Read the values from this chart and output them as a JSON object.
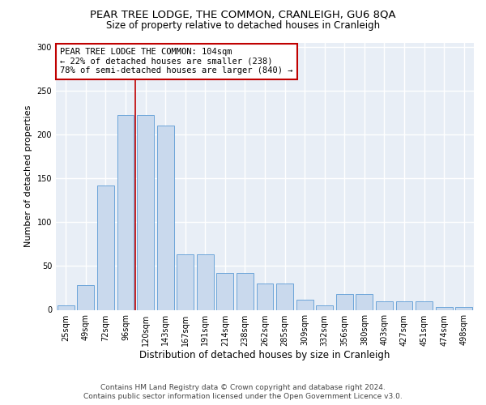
{
  "title": "PEAR TREE LODGE, THE COMMON, CRANLEIGH, GU6 8QA",
  "subtitle": "Size of property relative to detached houses in Cranleigh",
  "xlabel": "Distribution of detached houses by size in Cranleigh",
  "ylabel": "Number of detached properties",
  "categories": [
    "25sqm",
    "49sqm",
    "72sqm",
    "96sqm",
    "120sqm",
    "143sqm",
    "167sqm",
    "191sqm",
    "214sqm",
    "238sqm",
    "262sqm",
    "285sqm",
    "309sqm",
    "332sqm",
    "356sqm",
    "380sqm",
    "403sqm",
    "427sqm",
    "451sqm",
    "474sqm",
    "498sqm"
  ],
  "values": [
    5,
    28,
    142,
    222,
    222,
    210,
    63,
    63,
    42,
    42,
    30,
    30,
    12,
    5,
    18,
    18,
    10,
    10,
    10,
    3,
    3
  ],
  "bar_color": "#c9d9ed",
  "bar_edge_color": "#5b9bd5",
  "vline_color": "#c00000",
  "vline_x": 3.5,
  "annotation_text": "PEAR TREE LODGE THE COMMON: 104sqm\n← 22% of detached houses are smaller (238)\n78% of semi-detached houses are larger (840) →",
  "annotation_box_color": "#ffffff",
  "annotation_box_edge_color": "#c00000",
  "annotation_fontsize": 7.5,
  "ylim": [
    0,
    305
  ],
  "yticks": [
    0,
    50,
    100,
    150,
    200,
    250,
    300
  ],
  "background_color": "#e8eef6",
  "grid_color": "#ffffff",
  "footer_line1": "Contains HM Land Registry data © Crown copyright and database right 2024.",
  "footer_line2": "Contains public sector information licensed under the Open Government Licence v3.0.",
  "title_fontsize": 9.5,
  "subtitle_fontsize": 8.5,
  "xlabel_fontsize": 8.5,
  "ylabel_fontsize": 8,
  "tick_fontsize": 7,
  "footer_fontsize": 6.5
}
